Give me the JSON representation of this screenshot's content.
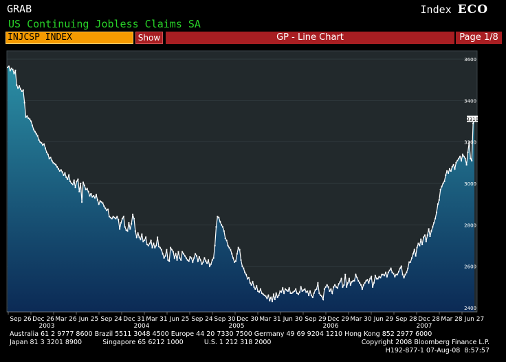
{
  "header": {
    "screen": "GRAB",
    "index_prefix": "Index",
    "index_code": "ECO",
    "subtitle": "US Continuing Jobless Claims SA"
  },
  "command_bar": {
    "ticker": "INJCSP INDEX",
    "show_label": "Show",
    "function_title": "GP - Line Chart",
    "page": "Page 1/8"
  },
  "chart_data": {
    "type": "area",
    "title": "",
    "xlabel": "",
    "ylabel": "",
    "ylim": [
      2380,
      3640
    ],
    "yticks": [
      2400,
      2600,
      2800,
      3000,
      3200,
      3400,
      3600
    ],
    "ytick_labels": [
      "2400",
      "2600",
      "2800",
      "3000",
      "3200",
      "3400",
      "3600"
    ],
    "last_value_label": "3310",
    "x_tick_labels": [
      "Sep 26",
      "Dec 26",
      "Mar 26",
      "Jun 25",
      "Sep 24",
      "Dec 31",
      "Mar 31",
      "Jun 25",
      "Sep 24",
      "Sep 30",
      "Dec 30",
      "Mar 31",
      "Jun 30",
      "Sep 29",
      "Dec 29",
      "Mar 30",
      "Jun 29",
      "Sep 28",
      "Dec 28",
      "Mar 28",
      "Jun 27"
    ],
    "year_labels": [
      "2003",
      "2004",
      "2005",
      "2006",
      "2007"
    ],
    "colors": {
      "area_top": "#2b8fa5",
      "area_bottom": "#0b2a55",
      "line": "#ffffff",
      "plot_bg": "#22292c",
      "grid": "#3a4448"
    },
    "series": [
      {
        "values": [
          3560,
          3565,
          3545,
          3555,
          3550,
          3530,
          3545,
          3475,
          3460,
          3470,
          3455,
          3445,
          3450,
          3390,
          3320,
          3325,
          3315,
          3310,
          3300,
          3280,
          3260,
          3250,
          3240,
          3230,
          3210,
          3200,
          3195,
          3185,
          3190,
          3170,
          3150,
          3140,
          3120,
          3125,
          3110,
          3100,
          3095,
          3090,
          3080,
          3070,
          3060,
          3065,
          3055,
          3040,
          3050,
          3030,
          3020,
          3040,
          3010,
          3000,
          2995,
          3015,
          2980,
          3010,
          3020,
          2960,
          3000,
          2910,
          3005,
          2990,
          2970,
          2975,
          2960,
          2940,
          2950,
          2935,
          2940,
          2930,
          2945,
          2920,
          2900,
          2915,
          2910,
          2905,
          2890,
          2880,
          2870,
          2875,
          2840,
          2835,
          2830,
          2840,
          2835,
          2830,
          2840,
          2825,
          2780,
          2810,
          2830,
          2840,
          2790,
          2775,
          2770,
          2810,
          2780,
          2805,
          2850,
          2830,
          2770,
          2740,
          2760,
          2740,
          2730,
          2755,
          2720,
          2725,
          2740,
          2705,
          2700,
          2710,
          2725,
          2690,
          2710,
          2690,
          2700,
          2740,
          2695,
          2690,
          2680,
          2660,
          2640,
          2650,
          2680,
          2630,
          2625,
          2690,
          2680,
          2670,
          2640,
          2660,
          2630,
          2670,
          2640,
          2630,
          2670,
          2660,
          2650,
          2640,
          2630,
          2625,
          2645,
          2640,
          2620,
          2640,
          2660,
          2650,
          2625,
          2645,
          2630,
          2610,
          2620,
          2640,
          2625,
          2615,
          2630,
          2600,
          2610,
          2630,
          2640,
          2700,
          2790,
          2840,
          2835,
          2815,
          2800,
          2790,
          2770,
          2735,
          2725,
          2700,
          2690,
          2680,
          2660,
          2640,
          2620,
          2625,
          2660,
          2690,
          2680,
          2630,
          2600,
          2590,
          2570,
          2560,
          2540,
          2545,
          2520,
          2510,
          2525,
          2500,
          2490,
          2505,
          2480,
          2475,
          2490,
          2470,
          2465,
          2460,
          2455,
          2445,
          2460,
          2435,
          2450,
          2430,
          2465,
          2440,
          2470,
          2450,
          2460,
          2480,
          2475,
          2495,
          2470,
          2490,
          2485,
          2480,
          2495,
          2470,
          2470,
          2475,
          2480,
          2490,
          2470,
          2465,
          2475,
          2500,
          2480,
          2485,
          2490,
          2475,
          2480,
          2460,
          2480,
          2460,
          2450,
          2470,
          2485,
          2490,
          2520,
          2470,
          2460,
          2455,
          2440,
          2490,
          2500,
          2510,
          2500,
          2480,
          2490,
          2470,
          2500,
          2510,
          2500,
          2495,
          2515,
          2525,
          2540,
          2500,
          2510,
          2560,
          2500,
          2520,
          2540,
          2510,
          2525,
          2530,
          2530,
          2560,
          2545,
          2530,
          2520,
          2510,
          2490,
          2510,
          2520,
          2530,
          2535,
          2520,
          2540,
          2550,
          2500,
          2520,
          2555,
          2540,
          2540,
          2550,
          2545,
          2560,
          2560,
          2555,
          2570,
          2550,
          2570,
          2580,
          2590,
          2570,
          2565,
          2550,
          2560,
          2560,
          2575,
          2590,
          2600,
          2560,
          2545,
          2560,
          2570,
          2590,
          2620,
          2620,
          2640,
          2660,
          2680,
          2650,
          2690,
          2710,
          2700,
          2730,
          2705,
          2740,
          2750,
          2720,
          2750,
          2780,
          2745,
          2770,
          2790,
          2810,
          2830,
          2860,
          2900,
          2920,
          2970,
          2985,
          3000,
          3010,
          3040,
          3060,
          3050,
          3070,
          3060,
          3080,
          3090,
          3070,
          3100,
          3110,
          3120,
          3130,
          3110,
          3140,
          3130,
          3120,
          3090,
          3150,
          3200,
          3120,
          3110,
          3290,
          3310
        ]
      }
    ]
  },
  "footer": {
    "line1": "Australia 61 2 9777 8600 Brazil 5511 3048 4500 Europe 44 20 7330 7500 Germany 49 69 9204 1210 Hong Kong 852 2977 6000",
    "line2_left": "Japan 81 3 3201 8900          Singapore 65 6212 1000          U.S. 1 212 318 2000",
    "line2_right": "Copyright 2008 Bloomberg Finance L.P.",
    "line3_right": "H192-877-1 07-Aug-08  8:57:57"
  }
}
